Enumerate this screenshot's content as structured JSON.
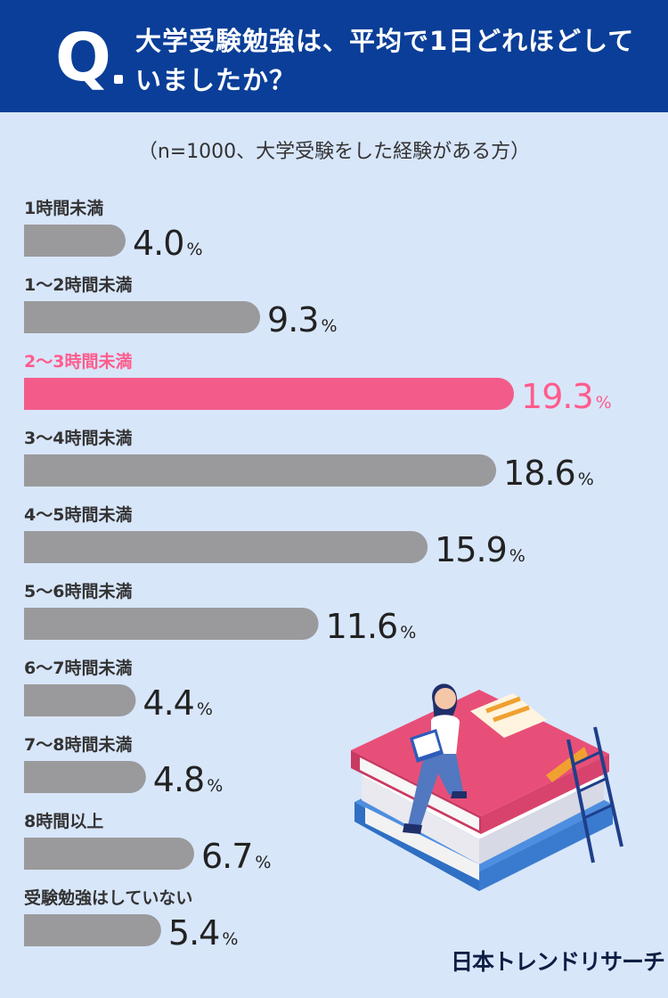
{
  "header": {
    "q_label": "Q",
    "question": "大学受験勉強は、平均で1日どれほどしていましたか？"
  },
  "subtitle": "（n=1000、大学受験をした経験がある方）",
  "colors": {
    "header_bg": "#0a3e98",
    "bar_default": "#9a9a9c",
    "bar_highlight": "#f35c8a",
    "highlight_text": "#ff5c8c",
    "background": "#d8e6fa"
  },
  "chart_data": {
    "type": "bar",
    "orientation": "horizontal",
    "unit": "%",
    "categories": [
      "1時間未満",
      "1〜2時間未満",
      "2〜3時間未満",
      "3〜4時間未満",
      "4〜5時間未満",
      "5〜6時間未満",
      "6〜7時間未満",
      "7〜8時間未満",
      "8時間以上",
      "受験勉強はしていない"
    ],
    "values": [
      4.0,
      9.3,
      19.3,
      18.6,
      15.9,
      11.6,
      4.4,
      4.8,
      6.7,
      5.4
    ],
    "highlight_index": 2,
    "xlim": [
      0,
      20
    ]
  },
  "brand": {
    "logo_text": "日本トレンドリサーチ"
  }
}
